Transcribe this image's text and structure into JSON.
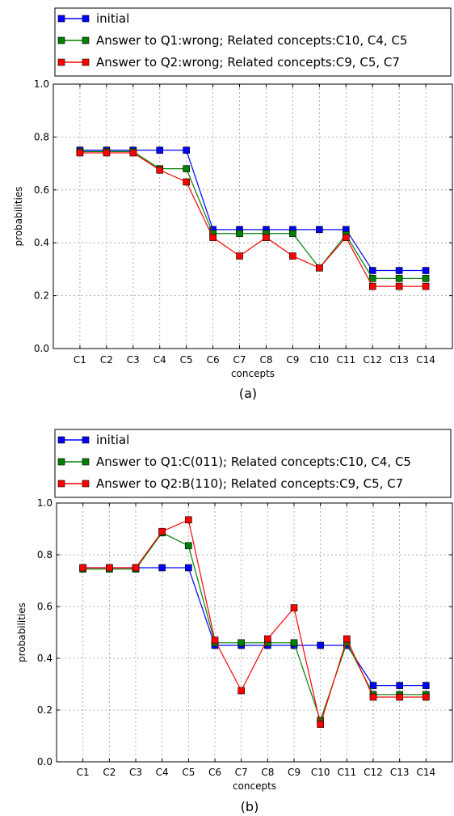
{
  "chart_data": [
    {
      "type": "line",
      "caption": "(a)",
      "xlabel": "concepts",
      "ylabel": "probabilities",
      "ylim": [
        0.0,
        1.0
      ],
      "yticks": [
        "0.0",
        "0.2",
        "0.4",
        "0.6",
        "0.8",
        "1.0"
      ],
      "grid": true,
      "legend_placement": "top",
      "categories": [
        "C1",
        "C2",
        "C3",
        "C4",
        "C5",
        "C6",
        "C7",
        "C8",
        "C9",
        "C10",
        "C11",
        "C12",
        "C13",
        "C14"
      ],
      "series": [
        {
          "name": "initial",
          "color": "#0000ff",
          "values": [
            0.75,
            0.75,
            0.75,
            0.75,
            0.75,
            0.45,
            0.45,
            0.45,
            0.45,
            0.45,
            0.45,
            0.295,
            0.295,
            0.295
          ]
        },
        {
          "name": "Answer to Q1:wrong; Related concepts:C10, C4, C5",
          "color": "#008000",
          "values": [
            0.745,
            0.745,
            0.745,
            0.68,
            0.68,
            0.435,
            0.435,
            0.435,
            0.435,
            0.305,
            0.43,
            0.265,
            0.265,
            0.265
          ]
        },
        {
          "name": "Answer to Q2:wrong; Related concepts:C9, C5, C7",
          "color": "#ff0000",
          "values": [
            0.74,
            0.74,
            0.74,
            0.675,
            0.63,
            0.42,
            0.35,
            0.42,
            0.35,
            0.305,
            0.42,
            0.235,
            0.235,
            0.235
          ]
        }
      ]
    },
    {
      "type": "line",
      "caption": "(b)",
      "xlabel": "concepts",
      "ylabel": "probabilities",
      "ylim": [
        0.0,
        1.0
      ],
      "yticks": [
        "0.0",
        "0.2",
        "0.4",
        "0.6",
        "0.8",
        "1.0"
      ],
      "grid": true,
      "legend_placement": "top",
      "categories": [
        "C1",
        "C2",
        "C3",
        "C4",
        "C5",
        "C6",
        "C7",
        "C8",
        "C9",
        "C10",
        "C11",
        "C12",
        "C13",
        "C14"
      ],
      "series": [
        {
          "name": "initial",
          "color": "#0000ff",
          "values": [
            0.75,
            0.75,
            0.75,
            0.75,
            0.75,
            0.45,
            0.45,
            0.45,
            0.45,
            0.45,
            0.45,
            0.295,
            0.295,
            0.295
          ]
        },
        {
          "name": "Answer to Q1:C(011); Related concepts:C10, C4, C5",
          "color": "#008000",
          "values": [
            0.745,
            0.745,
            0.745,
            0.885,
            0.835,
            0.46,
            0.46,
            0.46,
            0.46,
            0.16,
            0.46,
            0.26,
            0.26,
            0.26
          ]
        },
        {
          "name": "Answer to Q2:B(110); Related concepts:C9, C5, C7",
          "color": "#ff0000",
          "values": [
            0.75,
            0.75,
            0.75,
            0.89,
            0.935,
            0.47,
            0.275,
            0.475,
            0.595,
            0.145,
            0.475,
            0.25,
            0.25,
            0.25
          ]
        }
      ]
    }
  ]
}
